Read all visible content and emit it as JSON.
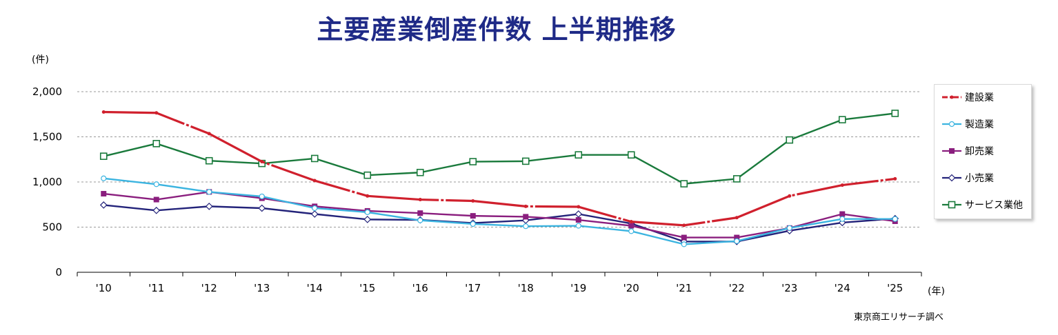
{
  "title": "主要産業倒産件数 上半期推移",
  "y_unit": "(件)",
  "x_unit": "(年)",
  "source": "東京商工リサーチ調べ",
  "colors": {
    "title": "#1f2a87",
    "建設業": "#d0202d",
    "製造業": "#3bb4e0",
    "卸売業": "#8a1e7e",
    "小売業": "#23237a",
    "サービス業他": "#1a7a3c"
  },
  "chart_data": {
    "type": "line",
    "title": "主要産業倒産件数 上半期推移",
    "xlabel": "(年)",
    "ylabel": "(件)",
    "ylim": [
      0,
      2000
    ],
    "yticks": [
      "0",
      "500",
      "1,000",
      "1,500",
      "2,000"
    ],
    "ytick_values": [
      0,
      500,
      1000,
      1500,
      2000
    ],
    "grid": true,
    "legend_position": "right",
    "categories": [
      "'10",
      "'11",
      "'12",
      "'13",
      "'14",
      "'15",
      "'16",
      "'17",
      "'18",
      "'19",
      "'20",
      "'21",
      "'22",
      "'23",
      "'24",
      "'25"
    ],
    "series": [
      {
        "name": "建設業",
        "marker": "dot",
        "line_style": "dash-dot",
        "values": [
          1775,
          1765,
          1535,
          1225,
          1015,
          845,
          805,
          790,
          730,
          725,
          560,
          520,
          605,
          845,
          965,
          1035
        ]
      },
      {
        "name": "製造業",
        "marker": "circle",
        "values": [
          1040,
          975,
          890,
          840,
          710,
          665,
          575,
          535,
          510,
          515,
          455,
          310,
          345,
          490,
          590,
          590
        ]
      },
      {
        "name": "卸売業",
        "marker": "square-filled",
        "values": [
          870,
          805,
          890,
          820,
          730,
          680,
          655,
          625,
          615,
          580,
          515,
          385,
          385,
          490,
          645,
          565
        ]
      },
      {
        "name": "小売業",
        "marker": "diamond",
        "values": [
          745,
          685,
          730,
          710,
          645,
          585,
          580,
          545,
          575,
          645,
          540,
          340,
          340,
          460,
          550,
          595
        ]
      },
      {
        "name": "サービス業他",
        "marker": "square-open",
        "values": [
          1285,
          1425,
          1235,
          1205,
          1260,
          1075,
          1105,
          1225,
          1230,
          1300,
          1300,
          980,
          1035,
          1465,
          1690,
          1760
        ]
      }
    ]
  }
}
